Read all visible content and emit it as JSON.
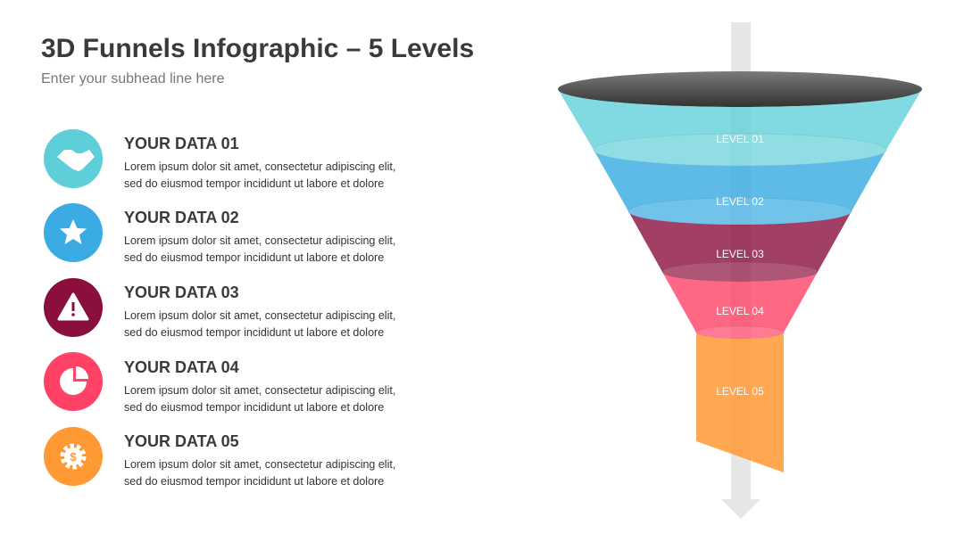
{
  "header": {
    "title": "3D Funnels Infographic – 5 Levels",
    "subhead": "Enter your subhead line here"
  },
  "items": [
    {
      "title": "YOUR DATA 01",
      "lines": [
        "Lorem ipsum dolor sit amet, consectetur adipiscing elit,",
        "sed do eiusmod tempor incididunt ut labore et dolore"
      ]
    },
    {
      "title": "YOUR DATA 02",
      "lines": [
        "Lorem ipsum dolor sit amet, consectetur adipiscing elit,",
        "sed do eiusmod tempor incididunt ut labore et dolore"
      ]
    },
    {
      "title": "YOUR DATA 03",
      "lines": [
        "Lorem ipsum dolor sit amet, consectetur adipiscing elit,",
        "sed do eiusmod tempor incididunt ut labore et dolore"
      ]
    },
    {
      "title": "YOUR DATA 04",
      "lines": [
        "Lorem ipsum dolor sit amet, consectetur adipiscing elit,",
        "sed do eiusmod tempor incididunt ut labore et dolore"
      ]
    },
    {
      "title": "YOUR DATA 05",
      "lines": [
        "Lorem ipsum dolor sit amet, consectetur adipiscing elit,",
        "sed do eiusmod tempor incididunt ut labore et dolore"
      ]
    }
  ],
  "funnel": {
    "levels": [
      "LEVEL 01",
      "LEVEL 02",
      "LEVEL 03",
      "LEVEL 04",
      "LEVEL 05"
    ]
  }
}
